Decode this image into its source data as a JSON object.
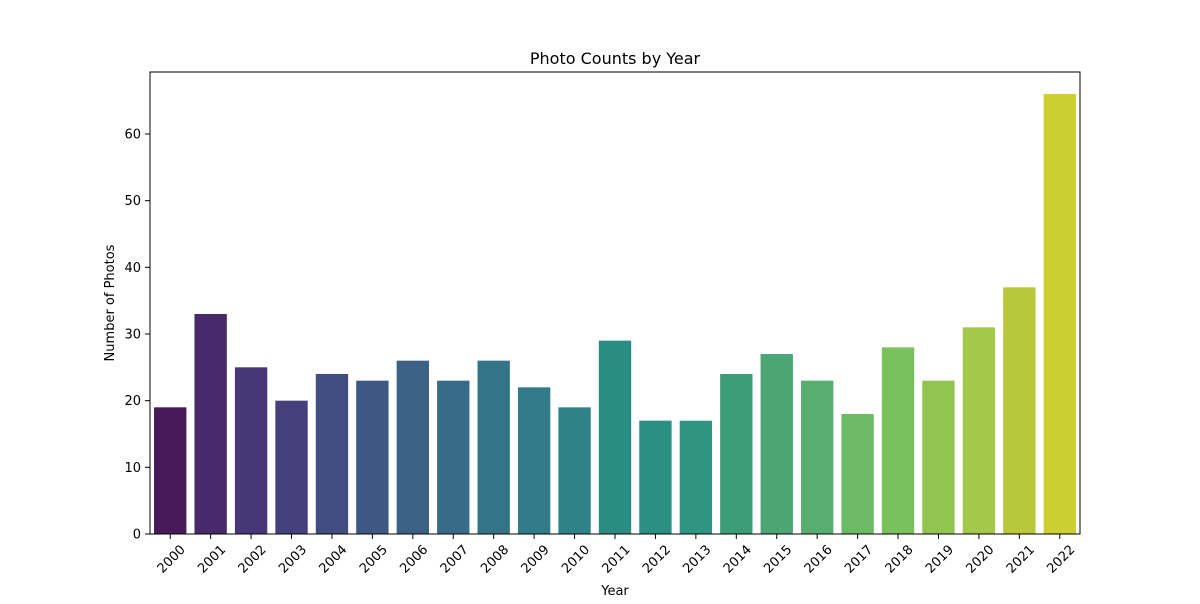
{
  "chart_data": {
    "type": "bar",
    "title": "Photo Counts by Year",
    "xlabel": "Year",
    "ylabel": "Number of Photos",
    "categories": [
      "2000",
      "2001",
      "2002",
      "2003",
      "2004",
      "2005",
      "2006",
      "2007",
      "2008",
      "2009",
      "2010",
      "2011",
      "2012",
      "2013",
      "2014",
      "2015",
      "2016",
      "2017",
      "2018",
      "2019",
      "2020",
      "2021",
      "2022"
    ],
    "values": [
      19,
      33,
      25,
      20,
      24,
      23,
      26,
      23,
      26,
      22,
      19,
      29,
      17,
      17,
      24,
      27,
      23,
      18,
      28,
      23,
      31,
      37,
      66
    ],
    "ylim": [
      0,
      69.3
    ],
    "yticks": [
      0,
      10,
      20,
      30,
      40,
      50,
      60
    ],
    "grid": false,
    "colormap": "viridis",
    "colors": [
      "#481a5a",
      "#482a6a",
      "#463778",
      "#45407b",
      "#424d80",
      "#3f5883",
      "#3b6185",
      "#386b87",
      "#337488",
      "#317c88",
      "#2d8387",
      "#2b8c84",
      "#2b8f83",
      "#2f9580",
      "#3c9e79",
      "#4ba575",
      "#58ae70",
      "#6abb63",
      "#7ac15d",
      "#91c54f",
      "#a4c94a",
      "#b9c73a",
      "#ccce31"
    ]
  }
}
